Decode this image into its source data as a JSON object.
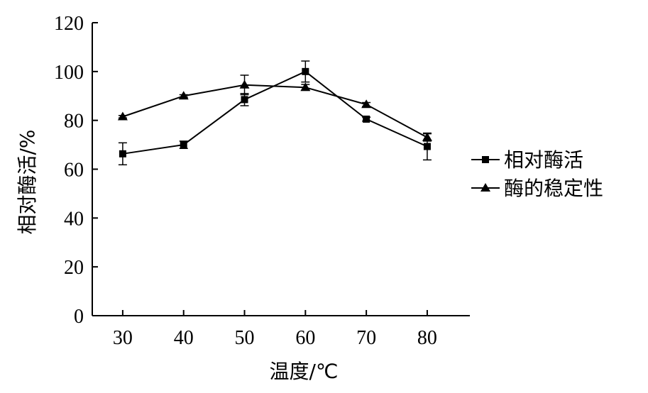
{
  "chart_data": {
    "type": "line",
    "title": "",
    "xlabel": "温度/℃",
    "ylabel": "相对酶活/%",
    "x": [
      30,
      40,
      50,
      60,
      70,
      80
    ],
    "xlim": [
      25,
      87
    ],
    "ylim": [
      0,
      120
    ],
    "xticks": [
      30,
      40,
      50,
      60,
      70,
      80
    ],
    "yticks": [
      0,
      20,
      40,
      60,
      80,
      100,
      120
    ],
    "grid": false,
    "legend_position": "right",
    "series": [
      {
        "name": "相对酶活",
        "marker": "square",
        "values": [
          66.3,
          70,
          88.5,
          100,
          80.5,
          69.3
        ],
        "errors": [
          4.5,
          1.5,
          2.5,
          4.3,
          0.8,
          5.5
        ]
      },
      {
        "name": "酶的稳定性",
        "marker": "triangle",
        "values": [
          81.5,
          90,
          94.5,
          93.5,
          86.5,
          73
        ],
        "errors": [
          0.5,
          0.5,
          4,
          1.2,
          0.8,
          1.5
        ]
      }
    ]
  }
}
